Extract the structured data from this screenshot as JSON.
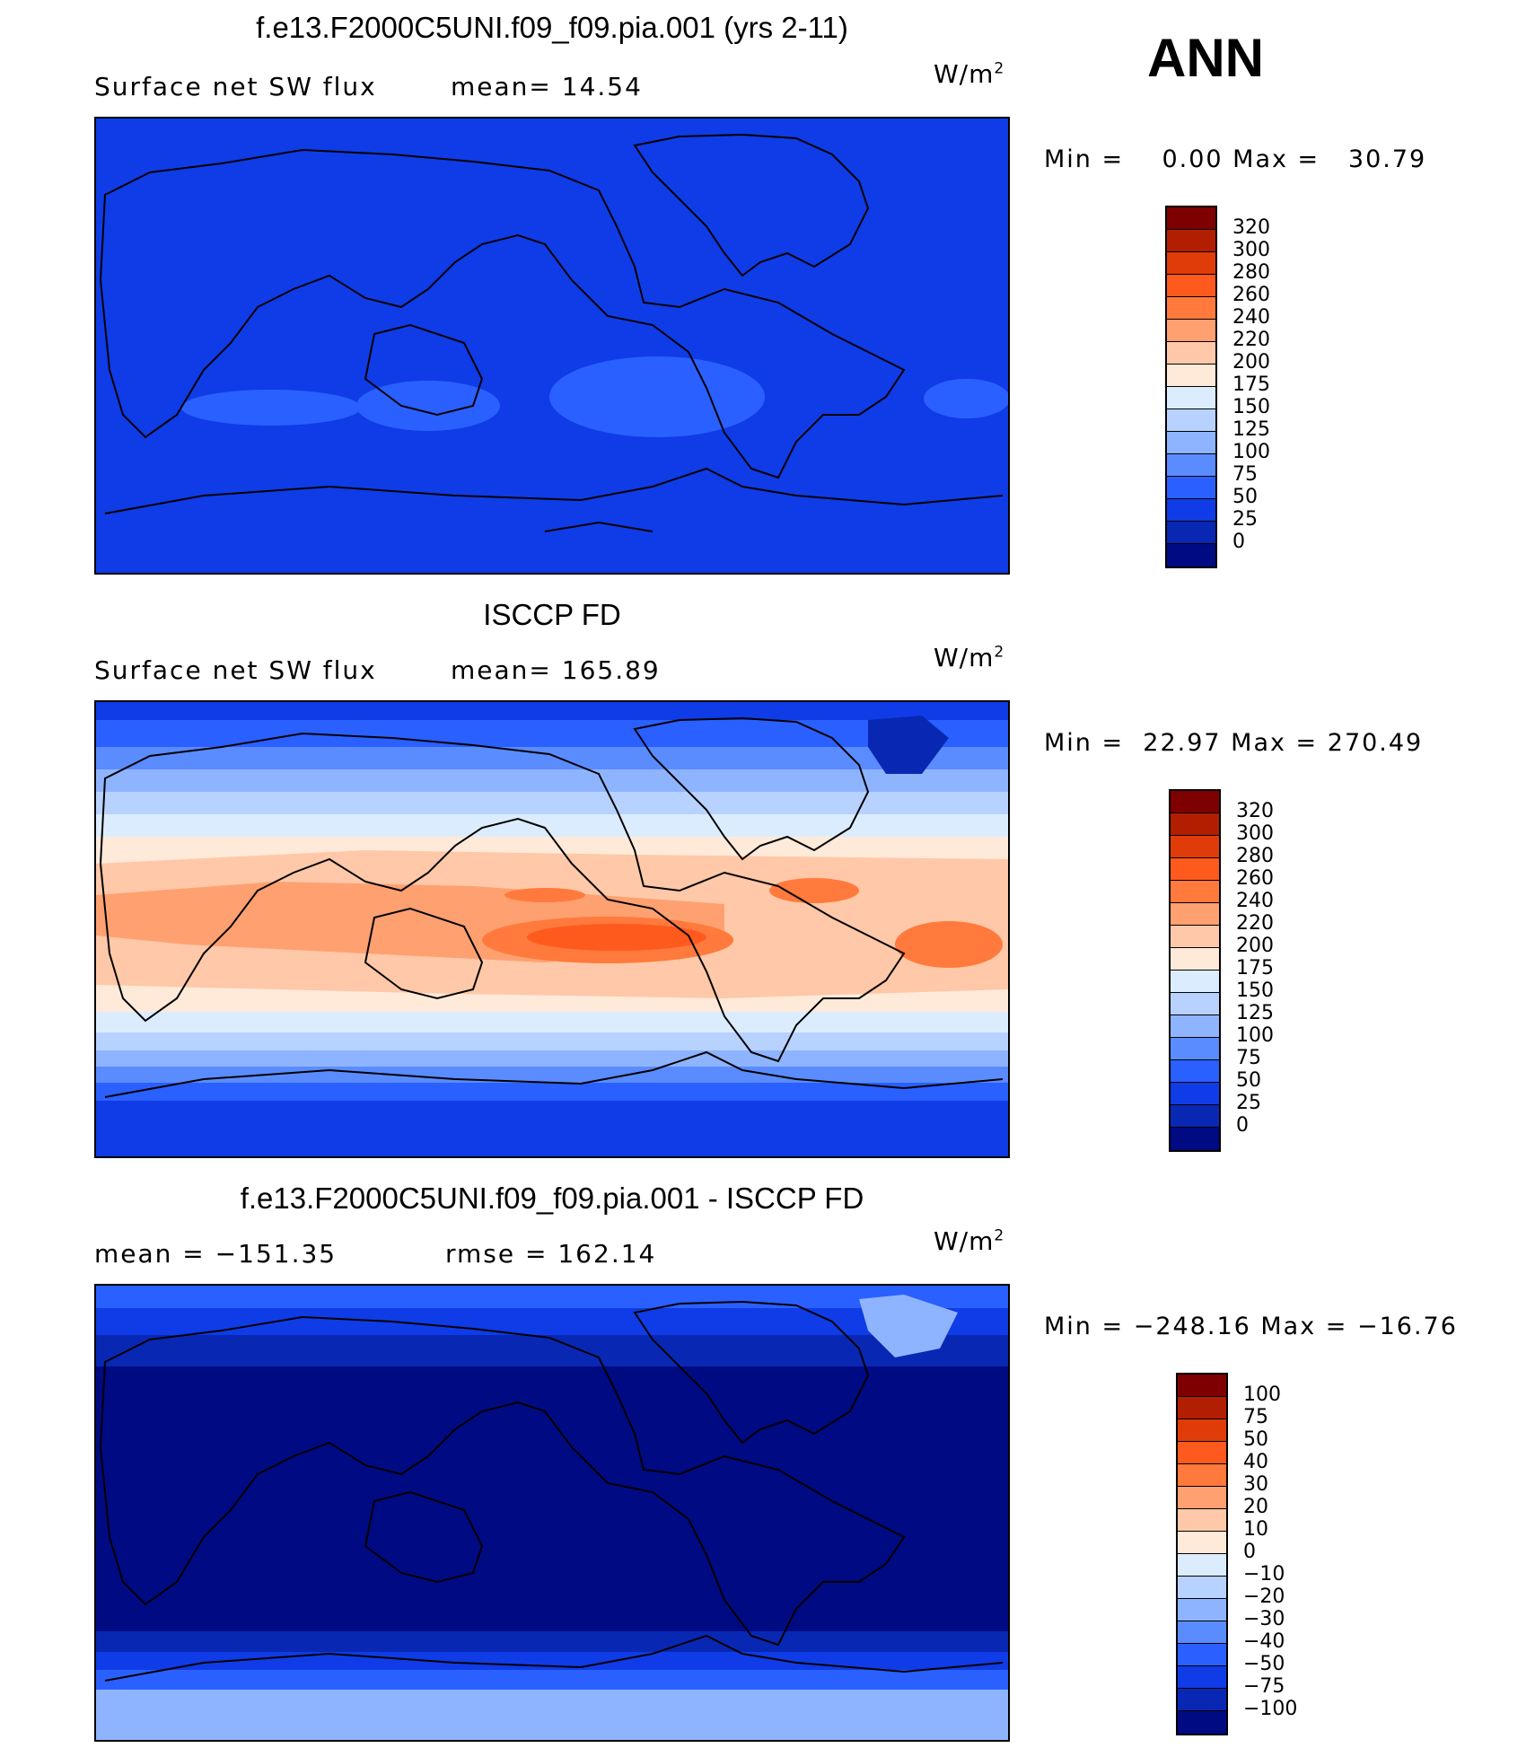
{
  "season": "ANN",
  "panels": [
    {
      "title": "f.e13.F2000C5UNI.f09_f09.pia.001 (yrs 2-11)",
      "left_label": "Surface net SW flux",
      "right_label": "mean=  14.54",
      "units_base": "W/m",
      "units_exp": "2",
      "min_max": "Min =    0.00 Max =   30.79",
      "colorbar_levels": [
        "320",
        "300",
        "280",
        "260",
        "240",
        "220",
        "200",
        "175",
        "150",
        "125",
        "100",
        "75",
        "50",
        "25",
        "0"
      ]
    },
    {
      "title": "ISCCP FD",
      "left_label": "Surface net SW flux",
      "right_label": "mean= 165.89",
      "units_base": "W/m",
      "units_exp": "2",
      "min_max": "Min =  22.97 Max = 270.49",
      "colorbar_levels": [
        "320",
        "300",
        "280",
        "260",
        "240",
        "220",
        "200",
        "175",
        "150",
        "125",
        "100",
        "75",
        "50",
        "25",
        "0"
      ]
    },
    {
      "title": "f.e13.F2000C5UNI.f09_f09.pia.001 - ISCCP FD",
      "left_label": "mean = −151.35",
      "right_label": "rmse = 162.14",
      "units_base": "W/m",
      "units_exp": "2",
      "min_max": "Min = −248.16 Max = −16.76",
      "colorbar_levels": [
        "100",
        "75",
        "50",
        "40",
        "30",
        "20",
        "10",
        "0",
        "−10",
        "−20",
        "−30",
        "−40",
        "−50",
        "−75",
        "−100"
      ]
    }
  ],
  "colors": {
    "palette_top_to_bottom": [
      "#7f0000",
      "#b21e00",
      "#e03c0a",
      "#ff5a1e",
      "#ff7a3c",
      "#ffa070",
      "#ffc8a8",
      "#ffeada",
      "#dcecff",
      "#b8d2ff",
      "#8fb4ff",
      "#5a8cff",
      "#2a60ff",
      "#0f3ce6",
      "#0828b4",
      "#000a82"
    ],
    "ocean_model": "#0f3ce6",
    "ocean_obs": "#2a60ff",
    "ocean_diff": "#000a82",
    "coast": "#000000"
  }
}
